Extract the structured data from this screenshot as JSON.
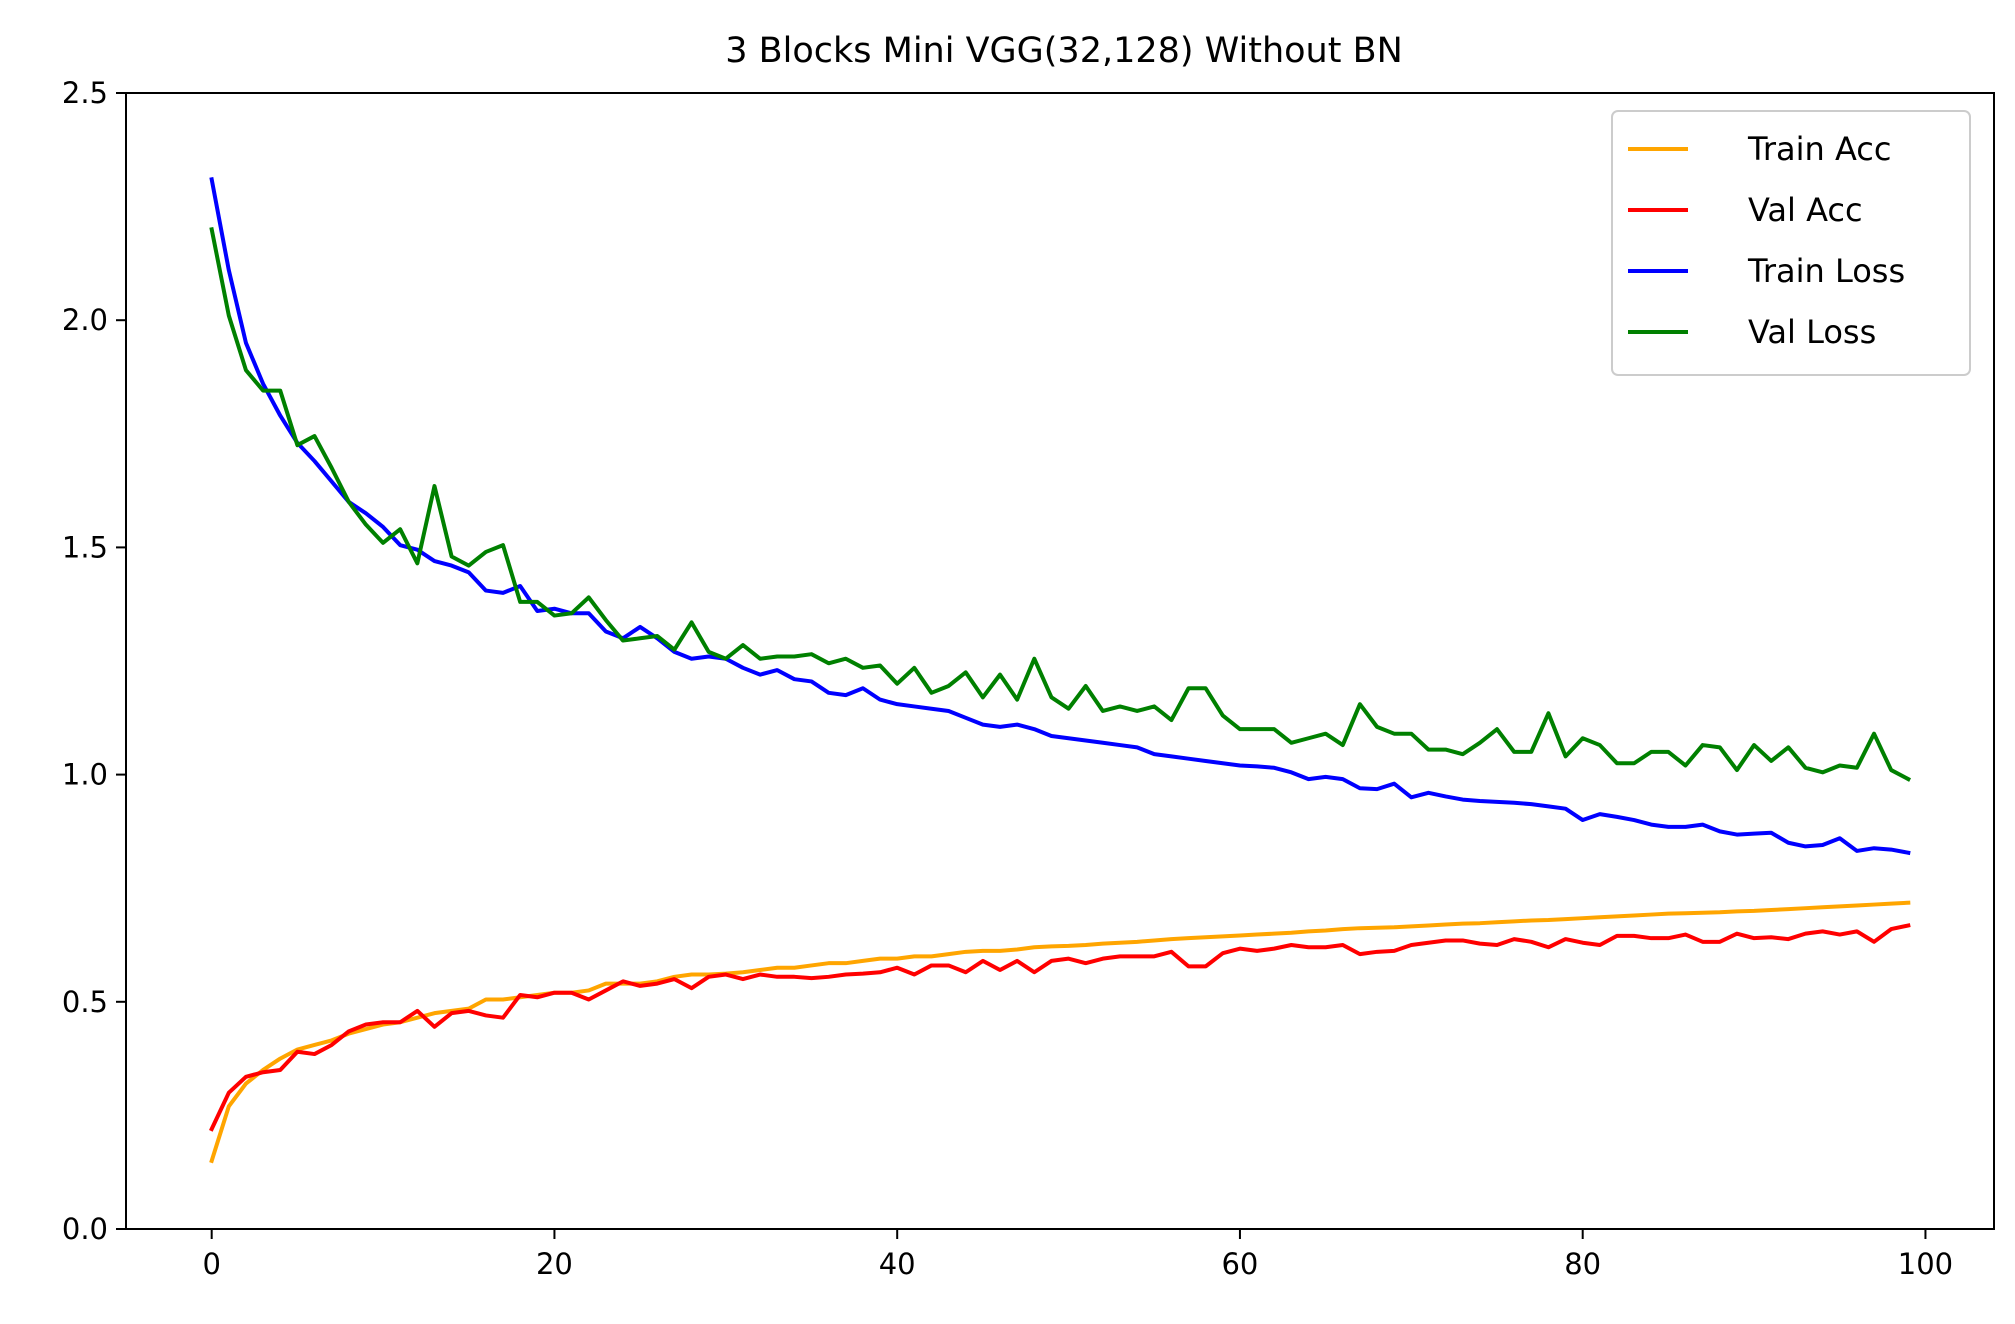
{
  "chart_data": {
    "type": "line",
    "title": "3 Blocks Mini VGG(32,128) Without BN",
    "xlabel": "",
    "ylabel": "",
    "xlim": [
      -5,
      104
    ],
    "ylim": [
      0,
      2.5
    ],
    "x_ticks": [
      0,
      20,
      40,
      60,
      80,
      100
    ],
    "x_tick_labels": [
      "0",
      "20",
      "40",
      "60",
      "80",
      "100"
    ],
    "y_ticks": [
      0.0,
      0.5,
      1.0,
      1.5,
      2.0,
      2.5
    ],
    "y_tick_labels": [
      "0.0",
      "0.5",
      "1.0",
      "1.5",
      "2.0",
      "2.5"
    ],
    "grid": false,
    "legend_position": "top-right",
    "series": [
      {
        "name": "Train Acc",
        "color": "#FFA500",
        "values": [
          0.15,
          0.27,
          0.32,
          0.35,
          0.375,
          0.395,
          0.405,
          0.415,
          0.43,
          0.44,
          0.45,
          0.455,
          0.465,
          0.475,
          0.48,
          0.485,
          0.505,
          0.505,
          0.51,
          0.515,
          0.52,
          0.52,
          0.525,
          0.54,
          0.54,
          0.54,
          0.545,
          0.555,
          0.56,
          0.56,
          0.562,
          0.565,
          0.57,
          0.575,
          0.575,
          0.58,
          0.585,
          0.585,
          0.59,
          0.595,
          0.595,
          0.6,
          0.6,
          0.605,
          0.61,
          0.612,
          0.612,
          0.615,
          0.62,
          0.622,
          0.623,
          0.625,
          0.628,
          0.63,
          0.632,
          0.635,
          0.638,
          0.64,
          0.642,
          0.644,
          0.646,
          0.648,
          0.65,
          0.652,
          0.655,
          0.657,
          0.66,
          0.662,
          0.663,
          0.664,
          0.666,
          0.668,
          0.67,
          0.672,
          0.673,
          0.675,
          0.677,
          0.679,
          0.68,
          0.682,
          0.684,
          0.686,
          0.688,
          0.69,
          0.692,
          0.694,
          0.695,
          0.696,
          0.697,
          0.699,
          0.7,
          0.702,
          0.704,
          0.706,
          0.708,
          0.71,
          0.712,
          0.714,
          0.716,
          0.718
        ]
      },
      {
        "name": "Val Acc",
        "color": "#FF0000",
        "values": [
          0.22,
          0.3,
          0.335,
          0.345,
          0.35,
          0.39,
          0.385,
          0.405,
          0.435,
          0.45,
          0.455,
          0.455,
          0.48,
          0.445,
          0.475,
          0.48,
          0.47,
          0.465,
          0.515,
          0.51,
          0.52,
          0.52,
          0.505,
          0.525,
          0.545,
          0.535,
          0.54,
          0.55,
          0.53,
          0.555,
          0.56,
          0.55,
          0.56,
          0.555,
          0.555,
          0.552,
          0.555,
          0.56,
          0.562,
          0.565,
          0.575,
          0.56,
          0.58,
          0.58,
          0.565,
          0.59,
          0.57,
          0.59,
          0.565,
          0.59,
          0.595,
          0.585,
          0.595,
          0.6,
          0.6,
          0.6,
          0.61,
          0.578,
          0.578,
          0.607,
          0.617,
          0.612,
          0.617,
          0.625,
          0.62,
          0.62,
          0.625,
          0.605,
          0.61,
          0.612,
          0.625,
          0.63,
          0.635,
          0.635,
          0.628,
          0.625,
          0.638,
          0.632,
          0.62,
          0.638,
          0.63,
          0.625,
          0.645,
          0.645,
          0.64,
          0.64,
          0.648,
          0.632,
          0.632,
          0.65,
          0.64,
          0.642,
          0.638,
          0.65,
          0.655,
          0.648,
          0.655,
          0.632,
          0.66,
          0.668
        ]
      },
      {
        "name": "Train Loss",
        "color": "#0000FF",
        "values": [
          2.31,
          2.11,
          1.95,
          1.86,
          1.79,
          1.73,
          1.69,
          1.645,
          1.6,
          1.575,
          1.545,
          1.505,
          1.495,
          1.47,
          1.46,
          1.445,
          1.405,
          1.4,
          1.415,
          1.36,
          1.365,
          1.355,
          1.355,
          1.315,
          1.3,
          1.325,
          1.3,
          1.27,
          1.255,
          1.26,
          1.255,
          1.235,
          1.22,
          1.23,
          1.21,
          1.205,
          1.18,
          1.175,
          1.19,
          1.165,
          1.155,
          1.15,
          1.145,
          1.14,
          1.125,
          1.11,
          1.105,
          1.11,
          1.1,
          1.085,
          1.08,
          1.075,
          1.07,
          1.065,
          1.06,
          1.045,
          1.04,
          1.035,
          1.03,
          1.025,
          1.02,
          1.018,
          1.015,
          1.005,
          0.99,
          0.995,
          0.99,
          0.97,
          0.968,
          0.98,
          0.95,
          0.96,
          0.952,
          0.945,
          0.942,
          0.94,
          0.938,
          0.935,
          0.93,
          0.925,
          0.9,
          0.913,
          0.907,
          0.9,
          0.89,
          0.885,
          0.885,
          0.89,
          0.875,
          0.868,
          0.87,
          0.872,
          0.85,
          0.842,
          0.845,
          0.86,
          0.832,
          0.838,
          0.835,
          0.828
        ]
      },
      {
        "name": "Val Loss",
        "color": "#008000",
        "values": [
          2.2,
          2.01,
          1.89,
          1.845,
          1.845,
          1.725,
          1.745,
          1.675,
          1.6,
          1.55,
          1.51,
          1.54,
          1.465,
          1.635,
          1.48,
          1.46,
          1.49,
          1.505,
          1.38,
          1.38,
          1.35,
          1.355,
          1.39,
          1.34,
          1.295,
          1.3,
          1.305,
          1.275,
          1.335,
          1.27,
          1.255,
          1.285,
          1.255,
          1.26,
          1.26,
          1.265,
          1.245,
          1.255,
          1.235,
          1.24,
          1.2,
          1.235,
          1.18,
          1.195,
          1.225,
          1.17,
          1.22,
          1.165,
          1.255,
          1.17,
          1.145,
          1.195,
          1.14,
          1.15,
          1.14,
          1.15,
          1.12,
          1.19,
          1.19,
          1.13,
          1.1,
          1.1,
          1.1,
          1.07,
          1.08,
          1.09,
          1.065,
          1.155,
          1.105,
          1.09,
          1.09,
          1.055,
          1.055,
          1.045,
          1.07,
          1.1,
          1.05,
          1.05,
          1.135,
          1.04,
          1.08,
          1.065,
          1.025,
          1.025,
          1.05,
          1.05,
          1.02,
          1.065,
          1.06,
          1.01,
          1.065,
          1.03,
          1.06,
          1.015,
          1.005,
          1.02,
          1.015,
          1.09,
          1.01,
          0.99
        ]
      }
    ]
  }
}
